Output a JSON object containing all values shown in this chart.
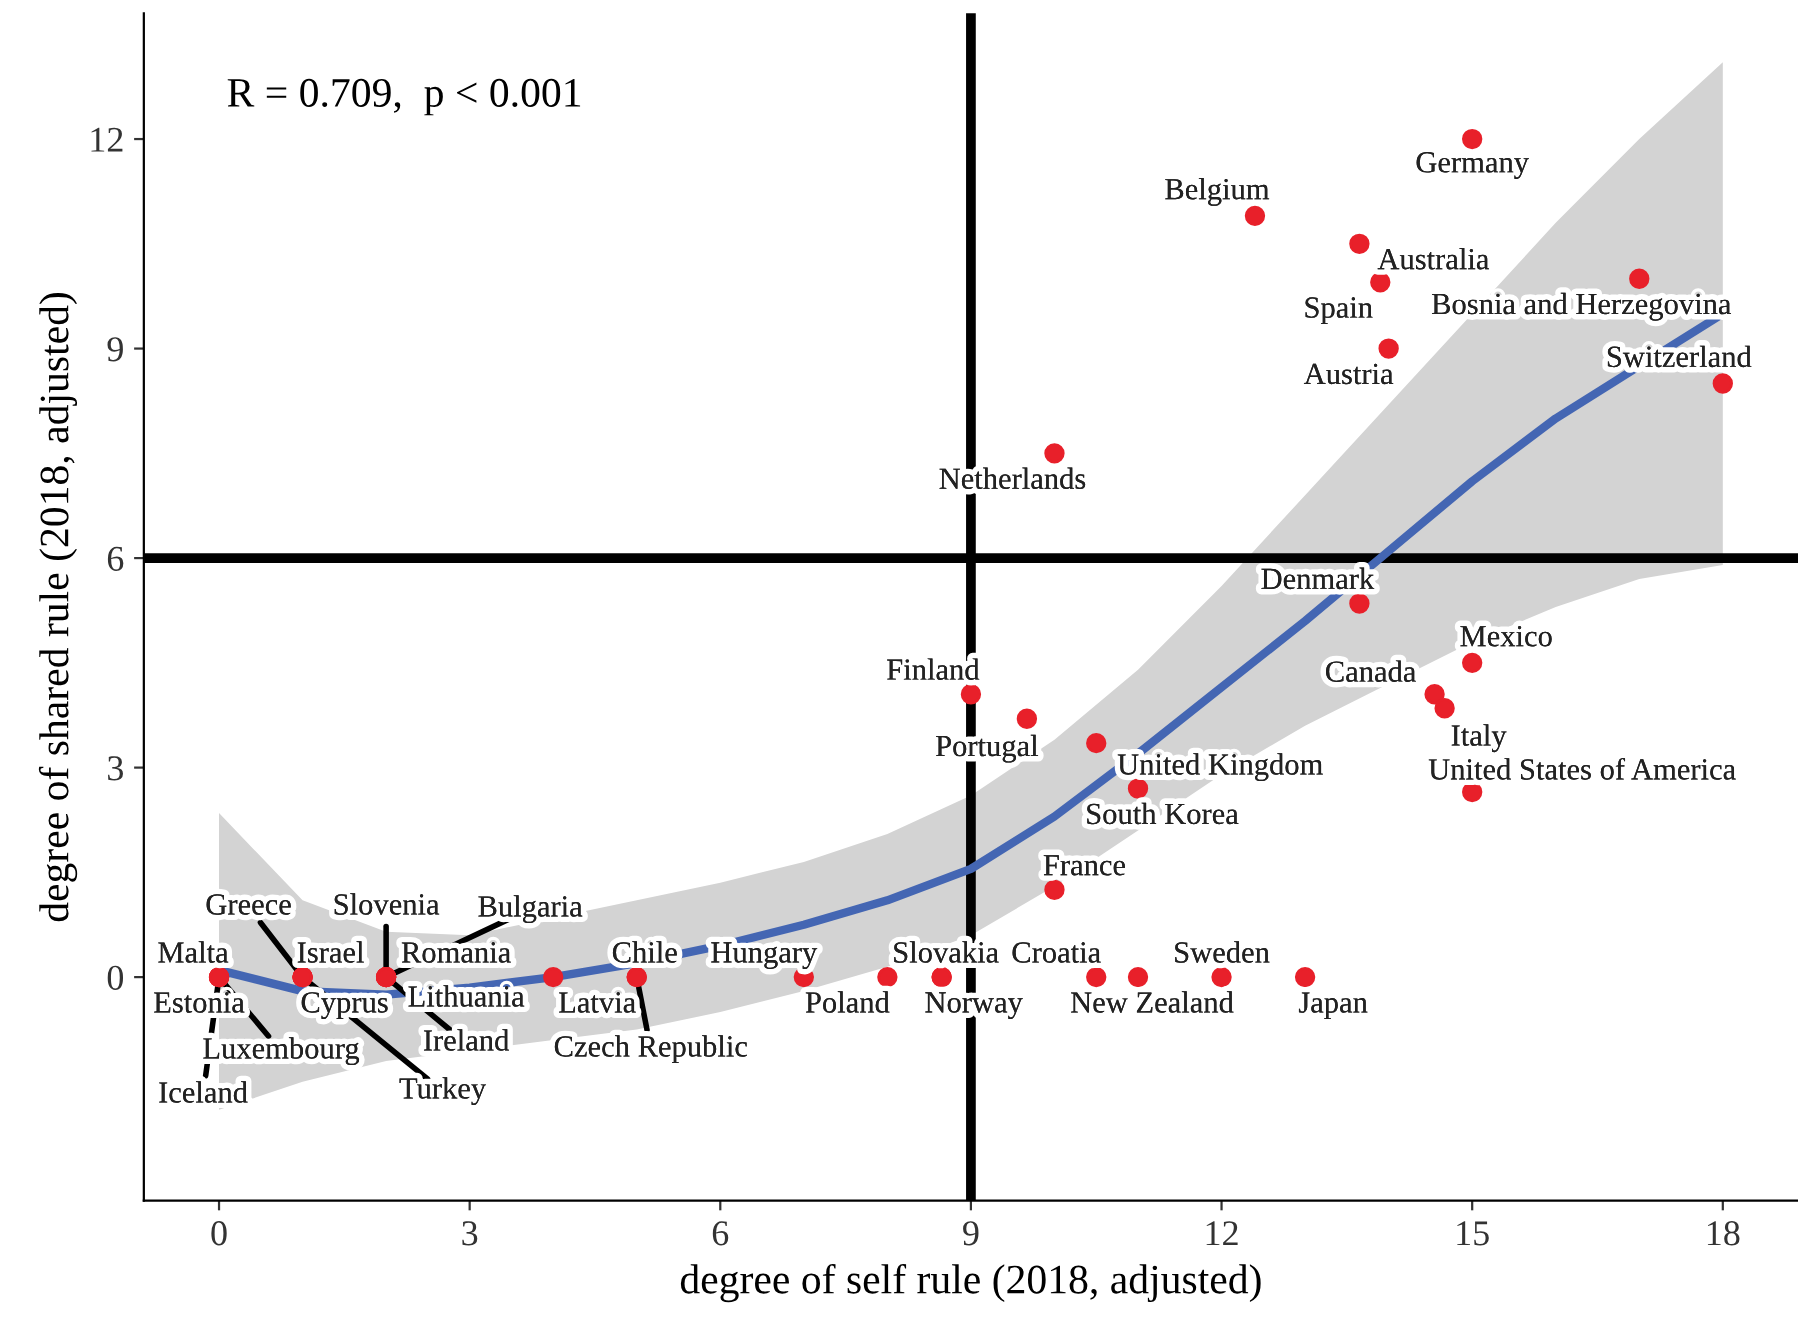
{
  "chart_data": {
    "type": "scatter",
    "xlabel": "degree of self rule (2018, adjusted)",
    "ylabel": "degree of shared rule (2018, adjusted)",
    "xlim": [
      -0.9,
      18.9
    ],
    "ylim": [
      -3.2,
      13.8
    ],
    "xticks": [
      0,
      3,
      6,
      9,
      12,
      15,
      18
    ],
    "yticks": [
      0,
      3,
      6,
      9,
      12
    ],
    "grid": false,
    "legend": false,
    "ref_lines": [
      {
        "axis": "x",
        "value": 9,
        "color": "#000000"
      },
      {
        "axis": "y",
        "value": 6,
        "color": "#000000"
      }
    ],
    "annotations": [
      "R = 0.709,  p < 0.001"
    ],
    "series": [
      {
        "type": "line",
        "color": "#4466b3",
        "x": [
          0,
          1,
          2,
          3,
          4,
          5,
          6,
          7,
          8,
          9,
          10,
          11,
          12,
          13,
          14,
          15,
          16,
          17,
          18
        ],
        "values": [
          0.1,
          -0.2,
          -0.25,
          -0.15,
          0.0,
          0.2,
          0.45,
          0.75,
          1.1,
          1.55,
          2.3,
          3.2,
          4.15,
          5.1,
          6.1,
          7.1,
          8.0,
          8.75,
          9.5
        ],
        "lower": [
          -1.9,
          -1.5,
          -1.2,
          -1.05,
          -0.9,
          -0.75,
          -0.5,
          -0.2,
          0.15,
          0.6,
          1.3,
          2.1,
          2.9,
          3.6,
          4.2,
          4.8,
          5.3,
          5.7,
          5.9
        ],
        "upper": [
          2.35,
          1.1,
          0.65,
          0.6,
          0.85,
          1.1,
          1.35,
          1.65,
          2.05,
          2.6,
          3.4,
          4.4,
          5.6,
          6.9,
          8.2,
          9.5,
          10.8,
          12.0,
          13.1
        ]
      },
      {
        "color": "#e8202a",
        "marker": "circle",
        "x": [
          15,
          12.4,
          13.65,
          13.9,
          17,
          14,
          18,
          10,
          13.65,
          15,
          14.55,
          14.67,
          15,
          9,
          9.67,
          10.5,
          11,
          10,
          10.5,
          11,
          12,
          13,
          8.65,
          8.65,
          8,
          7,
          5,
          5,
          4,
          0,
          0,
          0,
          0,
          1,
          1,
          1,
          1,
          2,
          2,
          2,
          2,
          2
        ],
        "values": [
          12,
          10.9,
          10.5,
          9.95,
          10,
          9,
          8.5,
          7.5,
          5.35,
          4.5,
          4.05,
          3.85,
          2.65,
          4.05,
          3.7,
          3.35,
          2.7,
          1.25,
          0,
          0,
          0,
          0,
          0,
          0,
          0,
          0,
          0,
          0,
          0,
          0,
          0,
          0,
          0,
          0,
          0,
          0,
          0,
          0,
          0,
          0,
          0,
          0
        ],
        "value_labels": [
          "Germany",
          "Belgium",
          "Australia",
          "Spain",
          "Bosnia and Herzegovina",
          "Austria",
          "Switzerland",
          "Netherlands",
          "Denmark",
          "Mexico",
          "Canada",
          "Italy",
          "United States of America",
          "Finland",
          "Portugal",
          "United Kingdom",
          "South Korea",
          "France",
          "Croatia",
          "New Zealand",
          "Sweden",
          "Japan",
          "Norway",
          "Slovakia",
          "Poland",
          "Hungary",
          "Chile",
          "Czech Republic",
          "Latvia",
          "Malta",
          "Estonia",
          "Luxembourg",
          "Iceland",
          "Greece",
          "Israel",
          "Cyprus",
          "Turkey",
          "Slovenia",
          "Bulgaria",
          "Romania",
          "Lithuania",
          "Ireland"
        ]
      }
    ]
  }
}
